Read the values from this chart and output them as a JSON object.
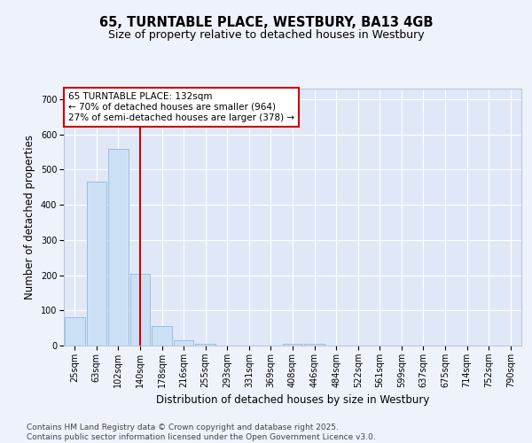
{
  "title": "65, TURNTABLE PLACE, WESTBURY, BA13 4GB",
  "subtitle": "Size of property relative to detached houses in Westbury",
  "xlabel": "Distribution of detached houses by size in Westbury",
  "ylabel": "Number of detached properties",
  "categories": [
    "25sqm",
    "63sqm",
    "102sqm",
    "140sqm",
    "178sqm",
    "216sqm",
    "255sqm",
    "293sqm",
    "331sqm",
    "369sqm",
    "408sqm",
    "446sqm",
    "484sqm",
    "522sqm",
    "561sqm",
    "599sqm",
    "637sqm",
    "675sqm",
    "714sqm",
    "752sqm",
    "790sqm"
  ],
  "values": [
    80,
    465,
    560,
    205,
    55,
    15,
    5,
    0,
    0,
    0,
    5,
    5,
    0,
    0,
    0,
    0,
    0,
    0,
    0,
    0,
    0
  ],
  "bar_color": "#cce0f5",
  "bar_edge_color": "#90b8d8",
  "subject_line_color": "#cc0000",
  "annotation_text": "65 TURNTABLE PLACE: 132sqm\n← 70% of detached houses are smaller (964)\n27% of semi-detached houses are larger (378) →",
  "annotation_box_color": "#ffffff",
  "annotation_box_edge_color": "#cc0000",
  "ylim": [
    0,
    730
  ],
  "yticks": [
    0,
    100,
    200,
    300,
    400,
    500,
    600,
    700
  ],
  "footer_text": "Contains HM Land Registry data © Crown copyright and database right 2025.\nContains public sector information licensed under the Open Government Licence v3.0.",
  "background_color": "#eef2fb",
  "plot_background_color": "#e0e8f8",
  "grid_color": "#ffffff",
  "title_fontsize": 10.5,
  "subtitle_fontsize": 9,
  "axis_label_fontsize": 8.5,
  "tick_fontsize": 7,
  "footer_fontsize": 6.5,
  "annotation_fontsize": 7.5
}
